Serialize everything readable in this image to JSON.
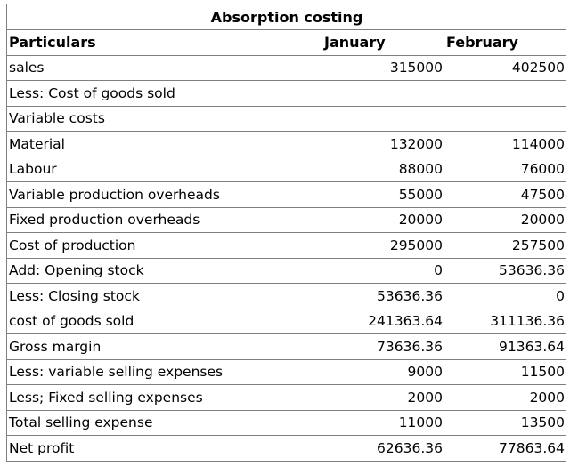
{
  "title": "Absorption costing",
  "headers": {
    "particulars": "Particulars",
    "col1": "January",
    "col2": "February"
  },
  "rows": [
    {
      "label": "sales",
      "jan": "315000",
      "feb": "402500"
    },
    {
      "label": "Less: Cost of goods sold",
      "jan": "",
      "feb": ""
    },
    {
      "label": "Variable costs",
      "jan": "",
      "feb": ""
    },
    {
      "label": "Material",
      "jan": "132000",
      "feb": "114000"
    },
    {
      "label": "Labour",
      "jan": "88000",
      "feb": "76000"
    },
    {
      "label": "Variable production overheads",
      "jan": "55000",
      "feb": "47500"
    },
    {
      "label": "Fixed production overheads",
      "jan": "20000",
      "feb": "20000"
    },
    {
      "label": "Cost of production",
      "jan": "295000",
      "feb": "257500"
    },
    {
      "label": "Add: Opening stock",
      "jan": "0",
      "feb": "53636.36"
    },
    {
      "label": "Less: Closing stock",
      "jan": "53636.36",
      "feb": "0"
    },
    {
      "label": "cost of goods sold",
      "jan": "241363.64",
      "feb": "311136.36"
    },
    {
      "label": "Gross margin",
      "jan": "73636.36",
      "feb": "91363.64"
    },
    {
      "label": "Less: variable selling expenses",
      "jan": "9000",
      "feb": "11500"
    },
    {
      "label": "Less; Fixed selling expenses",
      "jan": "2000",
      "feb": "2000"
    },
    {
      "label": "Total selling expense",
      "jan": "11000",
      "feb": "13500"
    },
    {
      "label": "Net profit",
      "jan": "62636.36",
      "feb": "77863.64"
    }
  ]
}
